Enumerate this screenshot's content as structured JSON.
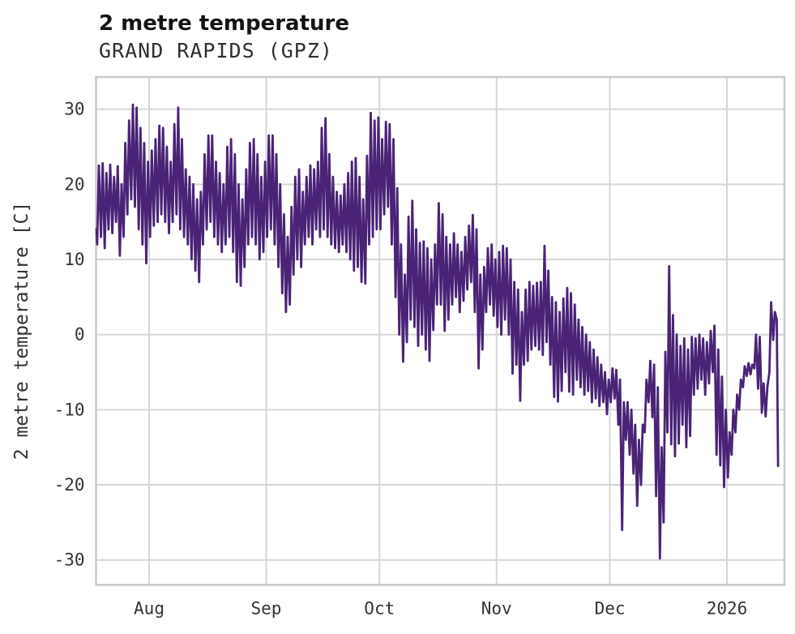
{
  "header": {
    "title": "2 metre temperature",
    "subtitle": "GRAND RAPIDS (GPZ)"
  },
  "chart_data": {
    "type": "line",
    "title": "2 metre temperature",
    "subtitle": "GRAND RAPIDS (GPZ)",
    "xlabel": "",
    "ylabel": "2 metre temperature [C]",
    "unit": "C",
    "line_color": "#4a2377",
    "grid": true,
    "legend": "none",
    "background": "#ffffff",
    "grid_color": "#d6d6d6",
    "spine_color": "#c9c9c9",
    "ylim": [
      -33,
      34
    ],
    "yticks": [
      30,
      20,
      10,
      0,
      -10,
      -20,
      -30
    ],
    "xticks": [
      {
        "label": "Aug",
        "day": 0
      },
      {
        "label": "Sep",
        "day": 31
      },
      {
        "label": "Oct",
        "day": 61
      },
      {
        "label": "Nov",
        "day": 92
      },
      {
        "label": "Dec",
        "day": 122
      },
      {
        "label": "2026",
        "day": 153
      }
    ],
    "x_unit": "days since Aug 1 (negative = July), span mid-Jul to mid-Jan 2026",
    "x_visible_range": [
      -14.1,
      168.3
    ],
    "series": {
      "name": "2 metre temperature",
      "sampling": "daily min/max pairs traced from plot; rendered as diurnal zigzag",
      "start_day": -14,
      "start_value": 14,
      "end_inverted": true,
      "daily_lo_hi": [
        [
          12,
          22.5
        ],
        [
          13,
          22.8
        ],
        [
          11.5,
          21.5
        ],
        [
          14,
          22.6
        ],
        [
          13.5,
          21
        ],
        [
          15,
          22.4
        ],
        [
          10.5,
          20
        ],
        [
          13,
          25.5
        ],
        [
          16,
          28.5
        ],
        [
          18,
          30.6
        ],
        [
          17,
          30.2
        ],
        [
          14,
          27.5
        ],
        [
          12,
          25.5
        ],
        [
          9.5,
          23
        ],
        [
          13,
          24.5
        ],
        [
          14.5,
          26
        ],
        [
          15,
          27.8
        ],
        [
          16,
          27.5
        ],
        [
          15,
          25
        ],
        [
          13.5,
          23
        ],
        [
          15,
          28
        ],
        [
          16,
          30.2
        ],
        [
          14,
          26
        ],
        [
          13,
          22
        ],
        [
          12,
          21
        ],
        [
          10,
          20
        ],
        [
          8.5,
          18
        ],
        [
          7,
          19
        ],
        [
          12,
          24
        ],
        [
          14,
          26.5
        ],
        [
          15,
          26.5
        ],
        [
          13,
          23
        ],
        [
          12,
          21.5
        ],
        [
          11,
          20
        ],
        [
          12,
          25
        ],
        [
          13,
          26
        ],
        [
          11,
          24
        ],
        [
          7,
          20
        ],
        [
          6.5,
          18
        ],
        [
          9,
          22
        ],
        [
          12,
          25.5
        ],
        [
          13,
          26
        ],
        [
          12,
          24
        ],
        [
          10,
          21
        ],
        [
          11,
          23
        ],
        [
          13,
          26.5
        ],
        [
          14,
          26.5
        ],
        [
          12,
          24
        ],
        [
          9,
          20
        ],
        [
          5.5,
          16
        ],
        [
          3,
          13
        ],
        [
          4,
          17
        ],
        [
          8,
          21
        ],
        [
          10,
          22
        ],
        [
          9,
          19
        ],
        [
          12,
          21
        ],
        [
          13,
          22.5
        ],
        [
          12,
          22
        ],
        [
          14,
          23
        ],
        [
          13,
          27.5
        ],
        [
          14,
          28.8
        ],
        [
          13,
          24
        ],
        [
          12,
          21
        ],
        [
          11.5,
          19
        ],
        [
          11,
          18.5
        ],
        [
          12,
          20
        ],
        [
          11,
          21.5
        ],
        [
          10,
          23
        ],
        [
          8.5,
          23.5
        ],
        [
          9,
          21
        ],
        [
          7,
          18
        ],
        [
          6.8,
          23.8
        ],
        [
          12,
          29.5
        ],
        [
          13,
          28.5
        ],
        [
          14,
          28.9
        ],
        [
          14,
          26
        ],
        [
          16,
          28.3
        ],
        [
          17,
          28
        ],
        [
          12,
          26
        ],
        [
          5,
          19.5
        ],
        [
          0,
          12
        ],
        [
          -3.6,
          8
        ],
        [
          -1,
          15.7
        ],
        [
          2,
          17.8
        ],
        [
          1,
          14
        ],
        [
          -1.5,
          12.2
        ],
        [
          0,
          12.4
        ],
        [
          -2,
          11.5
        ],
        [
          -3.5,
          10
        ],
        [
          0.6,
          12
        ],
        [
          4,
          17.5
        ],
        [
          4,
          16
        ],
        [
          0.5,
          13
        ],
        [
          2,
          12
        ],
        [
          4,
          13.5
        ],
        [
          5,
          12
        ],
        [
          3,
          11
        ],
        [
          4.5,
          13
        ],
        [
          6,
          14.5
        ],
        [
          7,
          15.9
        ],
        [
          3,
          14
        ],
        [
          -4.5,
          8
        ],
        [
          -2,
          9
        ],
        [
          3,
          11.5
        ],
        [
          4,
          12
        ],
        [
          2.5,
          10
        ],
        [
          1,
          11
        ],
        [
          0,
          11.8
        ],
        [
          2,
          11.5
        ],
        [
          0,
          10
        ],
        [
          -5.2,
          7
        ],
        [
          -4,
          6
        ],
        [
          -8.8,
          3
        ],
        [
          -4,
          6
        ],
        [
          -3.5,
          7
        ],
        [
          -2,
          6.5
        ],
        [
          -1.5,
          6.9
        ],
        [
          -2,
          7
        ],
        [
          -2.7,
          11.8
        ],
        [
          -1,
          8.5
        ],
        [
          -4,
          5
        ],
        [
          -8.3,
          4.3
        ],
        [
          -8.9,
          3
        ],
        [
          -7.5,
          4.8
        ],
        [
          -5,
          6.2
        ],
        [
          -7.6,
          5.5
        ],
        [
          -8,
          4
        ],
        [
          -6,
          2
        ],
        [
          -7,
          1
        ],
        [
          -8,
          0
        ],
        [
          -7.5,
          -1
        ],
        [
          -9,
          -2
        ],
        [
          -8.5,
          -3
        ],
        [
          -9.5,
          -4
        ],
        [
          -9,
          -5
        ],
        [
          -10.6,
          -6
        ],
        [
          -9,
          -4.5
        ],
        [
          -8.5,
          -4.7
        ],
        [
          -12,
          -6
        ],
        [
          -26,
          -9
        ],
        [
          -14,
          -9
        ],
        [
          -16,
          -10
        ],
        [
          -18.5,
          -12
        ],
        [
          -22.8,
          -14
        ],
        [
          -20,
          -12
        ],
        [
          -13,
          -6
        ],
        [
          -9,
          -3.5
        ],
        [
          -11,
          -4
        ],
        [
          -21.5,
          -7
        ],
        [
          -29.8,
          -15
        ],
        [
          -25,
          -2.3
        ],
        [
          -13,
          9.1
        ],
        [
          -14.6,
          2.6
        ],
        [
          -16.2,
          0
        ],
        [
          -14.5,
          -1.5
        ],
        [
          -12,
          -0.5
        ],
        [
          -15,
          -2
        ],
        [
          -13.5,
          -0.3
        ],
        [
          -8,
          -0.5
        ],
        [
          -7.2,
          0
        ],
        [
          -6,
          -0.5
        ],
        [
          -8,
          -1
        ],
        [
          -6.5,
          0.5
        ],
        [
          -5,
          1.2
        ],
        [
          -16,
          -2
        ],
        [
          -17.4,
          -5.6
        ],
        [
          -20.3,
          -10
        ],
        [
          -19,
          -13
        ],
        [
          -16,
          -10
        ],
        [
          -13,
          -8
        ],
        [
          -10,
          -6
        ],
        [
          -7,
          -4.2
        ],
        [
          -5.5,
          -3.8
        ],
        [
          -5.3,
          -4
        ],
        [
          -4.5,
          0
        ],
        [
          -7.2,
          -0.3
        ],
        [
          -10.4,
          -6.5
        ],
        [
          -10.9,
          -7
        ],
        [
          -5,
          4.3
        ],
        [
          -0.7,
          3
        ],
        [
          -17.5,
          2
        ]
      ]
    }
  }
}
